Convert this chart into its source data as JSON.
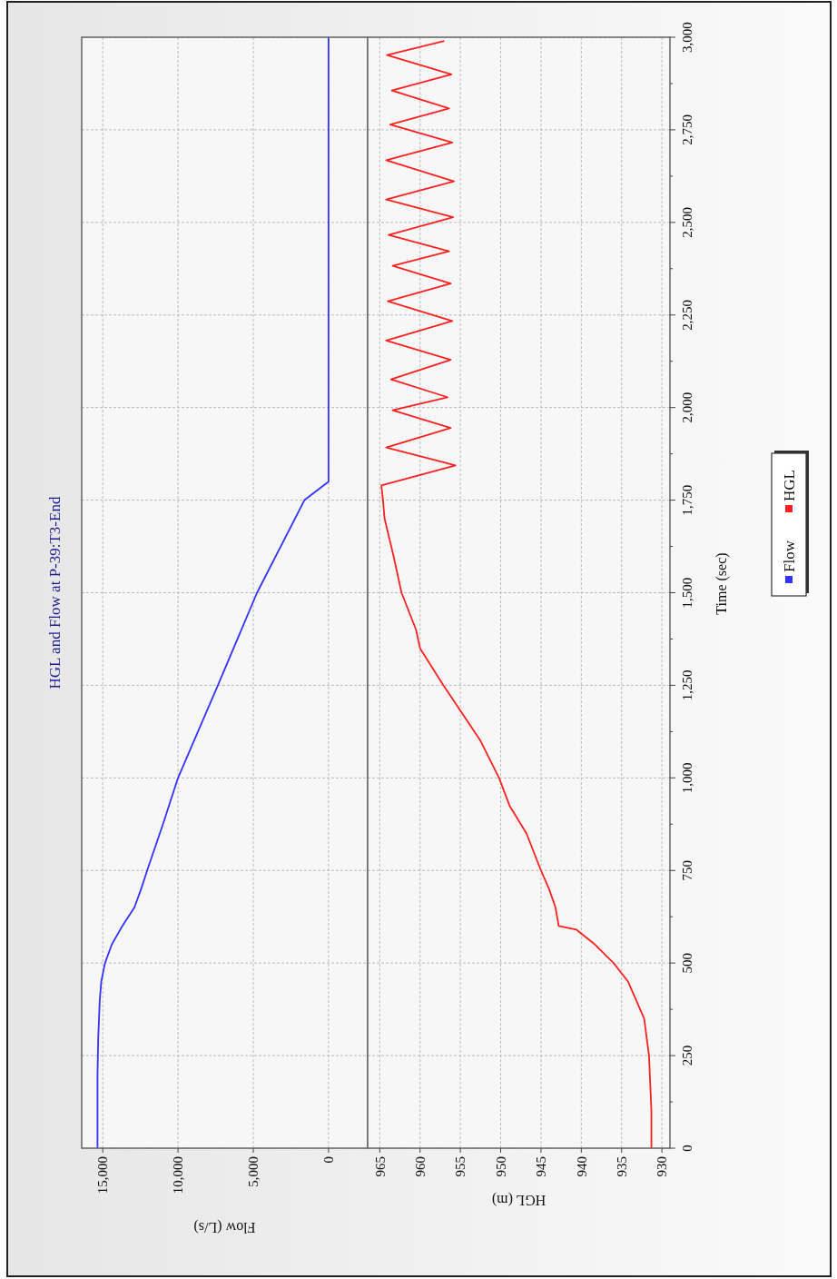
{
  "chart_data": [
    {
      "type": "line",
      "title": "HGL and Flow at P-39:T3-End",
      "xlabel": "Flow (L/s)",
      "ylim": [
        0,
        3000
      ],
      "yticks": [
        0,
        250,
        500,
        750,
        1000,
        1250,
        1500,
        1750,
        2000,
        2250,
        2500,
        2750,
        3000
      ],
      "xlim": [
        16400,
        -2600
      ],
      "xticks": [
        {
          "value": 15000,
          "label": "15,000"
        },
        {
          "value": 10000,
          "label": "10,000"
        },
        {
          "value": 5000,
          "label": "5,000"
        },
        0
      ],
      "grid": true,
      "tick_labels": "x",
      "series": [
        {
          "name": "Flow",
          "color": "#3333ff",
          "x": [
            15350,
            15350,
            15300,
            15200,
            15100,
            14850,
            14400,
            13700,
            12900,
            12450,
            12050,
            11000,
            10000,
            7350,
            4750,
            1600,
            0,
            0,
            0,
            0
          ],
          "values": [
            0,
            200,
            300,
            400,
            450,
            500,
            550,
            600,
            650,
            700,
            750,
            875,
            1000,
            1250,
            1500,
            1750,
            1800,
            2000,
            2500,
            3000
          ]
        }
      ]
    },
    {
      "type": "line",
      "xlabel": "HGL (m)",
      "ylabel": "Time (sec)",
      "ylim": [
        0,
        3000
      ],
      "yticks": [
        0,
        {
          "value": 125,
          "label": null
        },
        250,
        {
          "value": 375,
          "label": null
        },
        500,
        {
          "value": 625,
          "label": null
        },
        750,
        {
          "value": 875,
          "label": null
        },
        {
          "value": 1000,
          "label": "1,000"
        },
        {
          "value": 1125,
          "label": null
        },
        {
          "value": 1250,
          "label": "1,250"
        },
        {
          "value": 1375,
          "label": null
        },
        {
          "value": 1500,
          "label": "1,500"
        },
        {
          "value": 1625,
          "label": null
        },
        {
          "value": 1750,
          "label": "1,750"
        },
        {
          "value": 1875,
          "label": null
        },
        {
          "value": 2000,
          "label": "2,000"
        },
        {
          "value": 2125,
          "label": null
        },
        {
          "value": 2250,
          "label": "2,250"
        },
        {
          "value": 2375,
          "label": null
        },
        {
          "value": 2500,
          "label": "2,500"
        },
        {
          "value": 2625,
          "label": null
        },
        {
          "value": 2750,
          "label": "2,750"
        },
        {
          "value": 2875,
          "label": null
        },
        {
          "value": 3000,
          "label": "3,000"
        }
      ],
      "xlim": [
        966.5,
        929
      ],
      "xticks": [
        965,
        960,
        955,
        950,
        945,
        940,
        935,
        930
      ],
      "grid": true,
      "legend": "right",
      "series": [
        {
          "name": "HGL",
          "color": "#ff2020",
          "x": [
            931.3,
            931.3,
            931.6,
            932.2,
            933.2,
            934.2,
            936.0,
            938.3,
            940.6,
            942.8,
            943.2,
            944.0,
            945.0,
            946.8,
            948.9,
            950.2,
            952.5,
            957.1,
            960.0,
            960.5,
            962.3,
            963.3,
            964.4,
            964.6,
            964.8,
            955.6,
            964.2,
            956.2,
            963.4,
            956.6,
            963.6,
            956.2,
            964.2,
            956.0,
            964.0,
            956.2,
            963.4,
            956.4,
            963.9,
            955.9,
            964.2,
            955.8,
            964.2,
            956.0,
            963.7,
            956.4,
            963.5,
            956.1,
            964.1,
            957.0
          ],
          "values": [
            0,
            100,
            250,
            350,
            400,
            450,
            500,
            550,
            590,
            600,
            650,
            700,
            750,
            850,
            925,
            1000,
            1100,
            1250,
            1350,
            1400,
            1500,
            1600,
            1700,
            1750,
            1790,
            1844,
            1892,
            1945,
            1993,
            2028,
            2076,
            2129,
            2181,
            2234,
            2287,
            2335,
            2383,
            2422,
            2466,
            2514,
            2562,
            2611,
            2668,
            2716,
            2764,
            2808,
            2856,
            2900,
            2952,
            2990
          ]
        }
      ]
    }
  ]
}
